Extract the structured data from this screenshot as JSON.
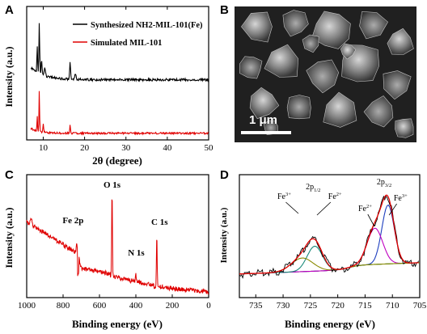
{
  "figure": {
    "panels": [
      {
        "label": "A",
        "xlabel": "2θ (degree)",
        "ylabel": "Intensity (a.u.)",
        "legend": [
          "Synthesized NH2-MIL-101(Fe)",
          "Simulated MIL-101"
        ]
      },
      {
        "label": "B",
        "scale_bar": "1 μm"
      },
      {
        "label": "C",
        "xlabel": "Binding energy (eV)",
        "ylabel": "Intensity (a.u.)",
        "annotations": [
          "Fe 2p",
          "O 1s",
          "N 1s",
          "C 1s"
        ]
      },
      {
        "label": "D",
        "xlabel": "Binding energy (eV)",
        "ylabel": "Intensity (a.u.)",
        "annotations": [
          "2p1/2",
          "2p3/2",
          "Fe3+",
          "Fe2+",
          "Fe2+",
          "Fe3+"
        ]
      }
    ]
  },
  "chart_data": [
    {
      "type": "line",
      "panel": "A",
      "xlabel": "2θ (degree)",
      "ylabel": "Intensity (a.u.)",
      "xlim": [
        6,
        50
      ],
      "xticks": [
        10,
        20,
        30,
        40,
        50
      ],
      "series": [
        {
          "name": "Synthesized NH2-MIL-101(Fe)",
          "color": "#000000",
          "x": [
            7,
            8.5,
            9,
            9.5,
            10,
            11,
            12,
            16,
            16.5,
            17,
            18,
            25,
            30,
            40,
            50
          ],
          "y": [
            0.55,
            0.65,
            0.95,
            0.62,
            0.55,
            0.52,
            0.5,
            0.5,
            0.62,
            0.5,
            0.48,
            0.46,
            0.45,
            0.44,
            0.44
          ]
        },
        {
          "name": "Simulated MIL-101",
          "color": "#e00000",
          "x": [
            7,
            8.5,
            9,
            9.5,
            10,
            11,
            12,
            16,
            16.5,
            17,
            18,
            25,
            30,
            40,
            50
          ],
          "y": [
            0.05,
            0.12,
            0.35,
            0.1,
            0.05,
            0.03,
            0.02,
            0.02,
            0.08,
            0.02,
            0.015,
            0.01,
            0.01,
            0.01,
            0.01
          ]
        }
      ]
    },
    {
      "type": "line",
      "panel": "C",
      "xlabel": "Binding energy (eV)",
      "ylabel": "Intensity (a.u.)",
      "xlim": [
        1000,
        0
      ],
      "xticks": [
        1000,
        800,
        600,
        400,
        200,
        0
      ],
      "series": [
        {
          "name": "survey",
          "color": "#e00000",
          "x": [
            1000,
            980,
            960,
            900,
            860,
            800,
            740,
            725,
            711,
            700,
            600,
            540,
            531,
            525,
            500,
            420,
            400,
            395,
            300,
            290,
            285,
            280,
            200,
            100,
            0
          ],
          "y": [
            0.55,
            0.62,
            0.58,
            0.5,
            0.45,
            0.38,
            0.32,
            0.3,
            0.38,
            0.22,
            0.16,
            0.14,
            0.93,
            0.18,
            0.12,
            0.09,
            0.14,
            0.08,
            0.06,
            0.1,
            0.55,
            0.05,
            0.04,
            0.03,
            0.02
          ]
        }
      ]
    },
    {
      "type": "line",
      "panel": "D",
      "xlabel": "Binding energy (eV)",
      "ylabel": "Intensity (a.u.)",
      "xlim": [
        738,
        705
      ],
      "xticks": [
        735,
        730,
        725,
        720,
        715,
        710,
        705
      ],
      "series": [
        {
          "name": "raw",
          "color": "#000000"
        },
        {
          "name": "envelope",
          "color": "#e00000"
        },
        {
          "name": "Fe2+ 2p3/2",
          "color": "#1f3fbf"
        },
        {
          "name": "Fe3+ 2p3/2",
          "color": "#c000c0"
        },
        {
          "name": "Fe2+ 2p1/2",
          "color": "#1a8a7a"
        },
        {
          "name": "Fe3+ 2p1/2",
          "color": "#8a8a00"
        },
        {
          "name": "background",
          "color": "#9a9a20"
        }
      ],
      "peaks_eV": [
        710.8,
        713.2,
        724.2,
        726.5
      ]
    }
  ]
}
